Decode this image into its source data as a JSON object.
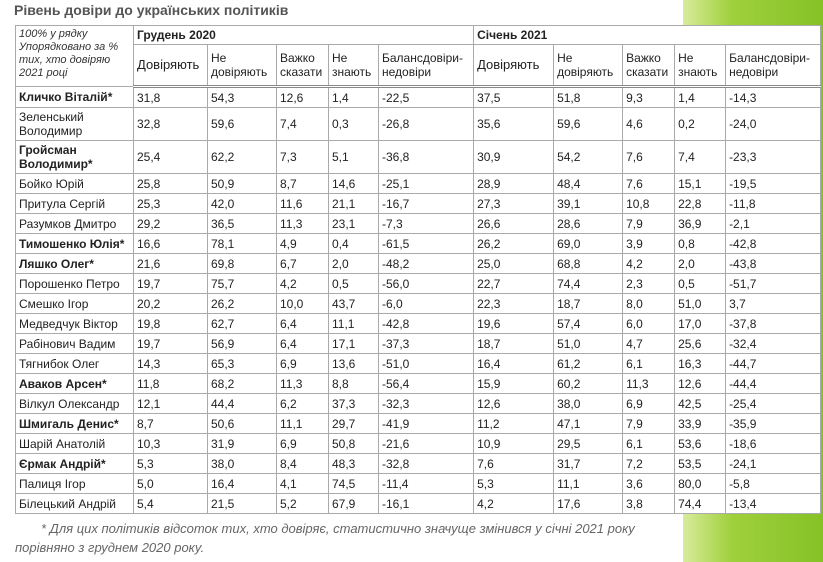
{
  "title": "Рівень довіри до українських політиків",
  "table": {
    "corner": "100% у рядку Упорядковано за % тих, хто довіряю 2021 році",
    "groups": [
      "Грудень 2020",
      "Січень 2021"
    ],
    "columns": [
      [
        "Довіряють",
        "Не довіряють",
        "Важко сказати",
        "Не знають",
        "Балансдовіри-недовіри"
      ],
      [
        "Довіряють",
        "Не довіряють",
        "Важко сказати",
        "Не знають",
        "Балансдовіри-недовіри"
      ]
    ],
    "rows": [
      {
        "name": "Кличко Віталій*",
        "bold": true,
        "cells": [
          "31,8",
          "54,3",
          "12,6",
          "1,4",
          "-22,5",
          "37,5",
          "51,8",
          "9,3",
          "1,4",
          "-14,3"
        ]
      },
      {
        "name": "Зеленський Володимир",
        "bold": false,
        "cells": [
          "32,8",
          "59,6",
          "7,4",
          "0,3",
          "-26,8",
          "35,6",
          "59,6",
          "4,6",
          "0,2",
          "-24,0"
        ]
      },
      {
        "name": "Гройсман Володимир*",
        "bold": true,
        "cells": [
          "25,4",
          "62,2",
          "7,3",
          "5,1",
          "-36,8",
          "30,9",
          "54,2",
          "7,6",
          "7,4",
          "-23,3"
        ]
      },
      {
        "name": "Бойко Юрій",
        "bold": false,
        "cells": [
          "25,8",
          "50,9",
          "8,7",
          "14,6",
          "-25,1",
          "28,9",
          "48,4",
          "7,6",
          "15,1",
          "-19,5"
        ]
      },
      {
        "name": "Притула Сергій",
        "bold": false,
        "cells": [
          "25,3",
          "42,0",
          "11,6",
          "21,1",
          "-16,7",
          "27,3",
          "39,1",
          "10,8",
          "22,8",
          "-11,8"
        ]
      },
      {
        "name": "Разумков Дмитро",
        "bold": false,
        "cells": [
          "29,2",
          "36,5",
          "11,3",
          "23,1",
          "-7,3",
          "26,6",
          "28,6",
          "7,9",
          "36,9",
          "-2,1"
        ]
      },
      {
        "name": "Тимошенко Юлія*",
        "bold": true,
        "cells": [
          "16,6",
          "78,1",
          "4,9",
          "0,4",
          "-61,5",
          "26,2",
          "69,0",
          "3,9",
          "0,8",
          "-42,8"
        ]
      },
      {
        "name": "Ляшко Олег*",
        "bold": true,
        "cells": [
          "21,6",
          "69,8",
          "6,7",
          "2,0",
          "-48,2",
          "25,0",
          "68,8",
          "4,2",
          "2,0",
          "-43,8"
        ]
      },
      {
        "name": "Порошенко Петро",
        "bold": false,
        "cells": [
          "19,7",
          "75,7",
          "4,2",
          "0,5",
          "-56,0",
          "22,7",
          "74,4",
          "2,3",
          "0,5",
          "-51,7"
        ]
      },
      {
        "name": "Смешко Ігор",
        "bold": false,
        "cells": [
          "20,2",
          "26,2",
          "10,0",
          "43,7",
          "-6,0",
          "22,3",
          "18,7",
          "8,0",
          "51,0",
          "3,7"
        ]
      },
      {
        "name": "Медведчук Віктор",
        "bold": false,
        "cells": [
          "19,8",
          "62,7",
          "6,4",
          "11,1",
          "-42,8",
          "19,6",
          "57,4",
          "6,0",
          "17,0",
          "-37,8"
        ]
      },
      {
        "name": "Рабінович Вадим",
        "bold": false,
        "cells": [
          "19,7",
          "56,9",
          "6,4",
          "17,1",
          "-37,3",
          "18,7",
          "51,0",
          "4,7",
          "25,6",
          "-32,4"
        ]
      },
      {
        "name": "Тягнибок Олег",
        "bold": false,
        "cells": [
          "14,3",
          "65,3",
          "6,9",
          "13,6",
          "-51,0",
          "16,4",
          "61,2",
          "6,1",
          "16,3",
          "-44,7"
        ]
      },
      {
        "name": "Аваков Арсен*",
        "bold": true,
        "cells": [
          "11,8",
          "68,2",
          "11,3",
          "8,8",
          "-56,4",
          "15,9",
          "60,2",
          "11,3",
          "12,6",
          "-44,4"
        ]
      },
      {
        "name": "Вілкул Олександр",
        "bold": false,
        "cells": [
          "12,1",
          "44,4",
          "6,2",
          "37,3",
          "-32,3",
          "12,6",
          "38,0",
          "6,9",
          "42,5",
          "-25,4"
        ]
      },
      {
        "name": "Шмигаль Денис*",
        "bold": true,
        "cells": [
          "8,7",
          "50,6",
          "11,1",
          "29,7",
          "-41,9",
          "11,2",
          "47,1",
          "7,9",
          "33,9",
          "-35,9"
        ]
      },
      {
        "name": "Шарій Анатолій",
        "bold": false,
        "cells": [
          "10,3",
          "31,9",
          "6,9",
          "50,8",
          "-21,6",
          "10,9",
          "29,5",
          "6,1",
          "53,6",
          "-18,6"
        ]
      },
      {
        "name": "Єрмак Андрій*",
        "bold": true,
        "cells": [
          "5,3",
          "38,0",
          "8,4",
          "48,3",
          "-32,8",
          "7,6",
          "31,7",
          "7,2",
          "53,5",
          "-24,1"
        ]
      },
      {
        "name": "Палиця Ігор",
        "bold": false,
        "cells": [
          "5,0",
          "16,4",
          "4,1",
          "74,5",
          "-11,4",
          "5,3",
          "11,1",
          "3,6",
          "80,0",
          "-5,8"
        ]
      },
      {
        "name": "Білецький Андрій",
        "bold": false,
        "cells": [
          "5,4",
          "21,5",
          "5,2",
          "67,9",
          "-16,1",
          "4,2",
          "17,6",
          "3,8",
          "74,4",
          "-13,4"
        ]
      }
    ]
  },
  "footnote": "* Для цих політиків відсоток тих, хто довіряє, статистично значуще змінився у січні 2021 року порівняно з груднем 2020 року."
}
